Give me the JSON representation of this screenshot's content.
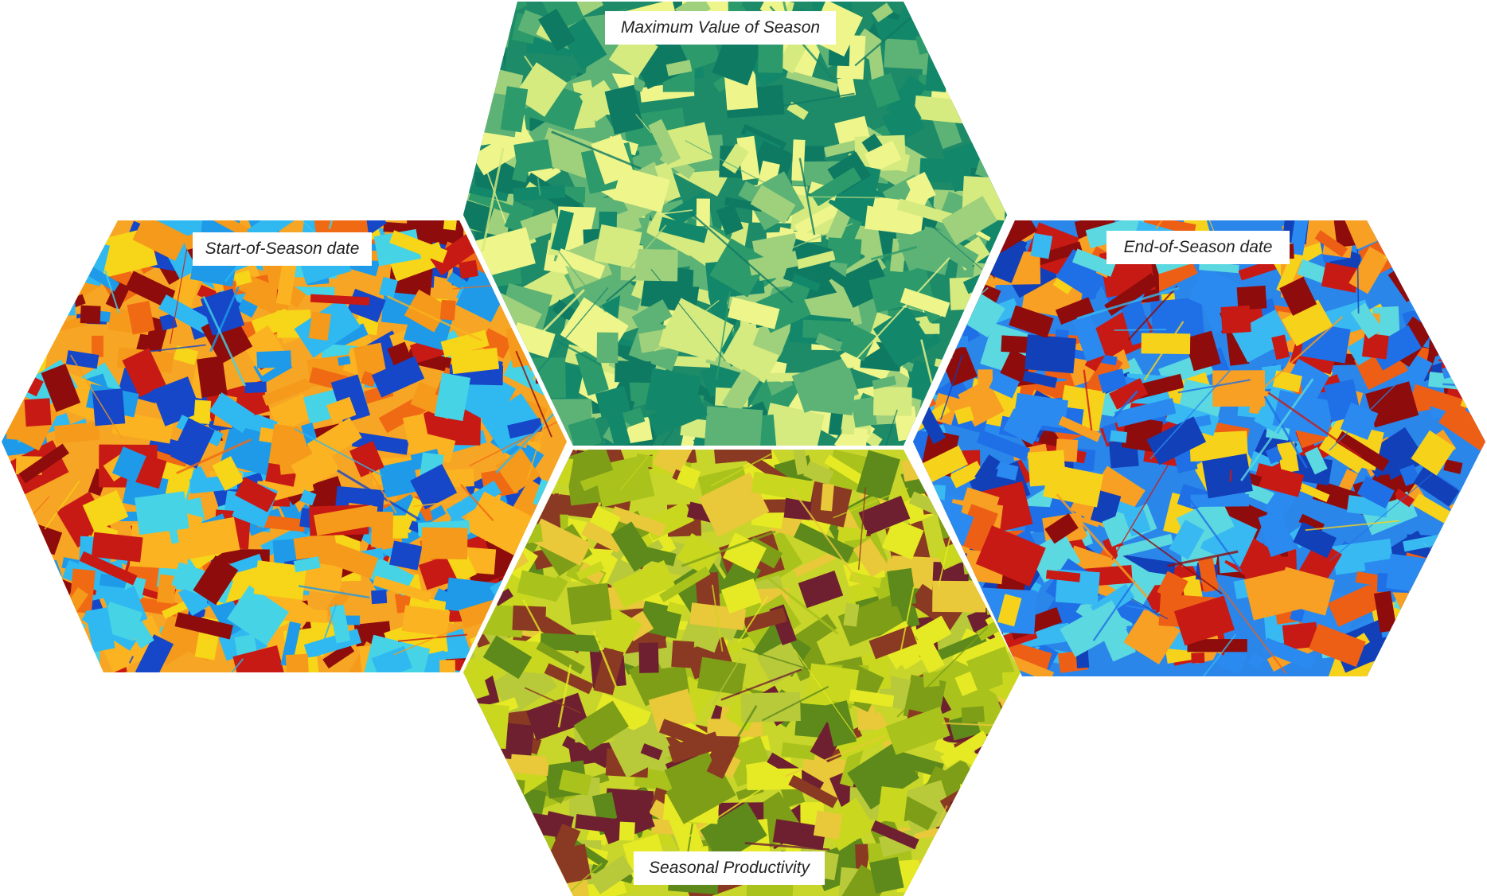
{
  "panels": [
    {
      "id": "max-value-of-season",
      "label": "Maximum Value of Season",
      "palette": [
        "#0f7a62",
        "#13876a",
        "#2c9a6a",
        "#5db276",
        "#9fd07c",
        "#d5ea7f",
        "#eef58a"
      ],
      "background": "#1d8a68"
    },
    {
      "id": "start-of-season-date",
      "label": "Start-of-Season date",
      "palette": [
        "#f59a1a",
        "#fbb321",
        "#f7d518",
        "#f06a14",
        "#c81a14",
        "#8e0c0c",
        "#1e9ae8",
        "#2fb9f0",
        "#1547c8",
        "#46d3e6"
      ],
      "background": "#f7a524"
    },
    {
      "id": "end-of-season-date",
      "label": "End-of-Season date",
      "palette": [
        "#1f6fe6",
        "#2a8af0",
        "#38b9f2",
        "#f7a023",
        "#f7d21b",
        "#ee5f16",
        "#c81a14",
        "#8e0c0c",
        "#1240b8",
        "#5cd8e0"
      ],
      "background": "#2b86ea"
    },
    {
      "id": "seasonal-productivity",
      "label": "Seasonal Productivity",
      "palette": [
        "#c9d81e",
        "#e6ea24",
        "#a9c21c",
        "#7e9e18",
        "#5d8a1a",
        "#e9c83a",
        "#8a3a22",
        "#6e2030",
        "#b8c93a"
      ],
      "background": "#c8d52a"
    }
  ]
}
